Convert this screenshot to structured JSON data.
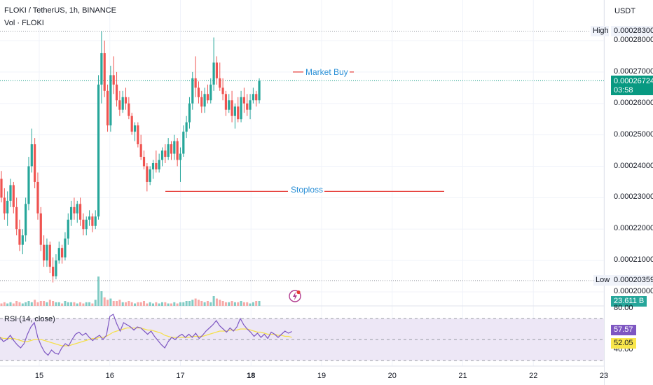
{
  "header": {
    "symbol_line": "FLOKI / TetherUS, 1h, BINANCE",
    "volume_line": "Vol · FLOKI",
    "currency": "USDT"
  },
  "price_axis": {
    "ticks": [
      "0.00028000",
      "0.00027000",
      "0.00026000",
      "0.00025000",
      "0.00024000",
      "0.00023000",
      "0.00022000",
      "0.00021000",
      "0.00020000"
    ],
    "high_label": "High",
    "high_value": "0.00028300",
    "low_label": "Low",
    "low_value": "0.00020359",
    "last_price": "0.00026724",
    "countdown": "03:58",
    "volume_value": "23.611 B"
  },
  "rsi_axis": {
    "label": "RSI (14, close)",
    "top_tick": "80.00",
    "bottom_tick": "40.00",
    "rsi_value": "57.57",
    "ma_value": "52.05"
  },
  "annotations": {
    "market_buy": "Market Buy",
    "stoploss": "Stoploss"
  },
  "time_axis": {
    "labels": [
      "15",
      "16",
      "17",
      "18",
      "19",
      "20",
      "21",
      "22",
      "23"
    ],
    "bold_label": "18"
  },
  "colors": {
    "up": "#26a69a",
    "down": "#ef5350",
    "rsi_line": "#7e57c2",
    "rsi_ma": "#f5e04a",
    "rsi_band": "#ede7f6",
    "annotation_text": "#2a8fd6",
    "annotation_line": "#e53935",
    "last_price_bg": "#089981",
    "rsi_value_bg": "#7e57c2",
    "ma_value_bg": "#f9e64b"
  },
  "chart_data": {
    "type": "candlestick",
    "title": "FLOKI / TetherUS, 1h, BINANCE",
    "ylim": [
      0.0001985,
      0.0002875
    ],
    "x_range": [
      "14.4",
      "23"
    ],
    "levels": {
      "high": 0.000283,
      "low": 0.00020359,
      "last": 0.00026724,
      "market_buy": 0.00027,
      "stoploss": 0.000232
    },
    "candles": [
      [
        0.000236,
        0.0002385,
        0.0002285,
        0.00023
      ],
      [
        0.00023,
        0.000233,
        0.000223,
        0.000225
      ],
      [
        0.000225,
        0.000232,
        0.000221,
        0.000229
      ],
      [
        0.000229,
        0.000236,
        0.000227,
        0.000234
      ],
      [
        0.000234,
        0.000235,
        0.000225,
        0.000227
      ],
      [
        0.000227,
        0.00023,
        0.000218,
        0.00022
      ],
      [
        0.00022,
        0.000223,
        0.000213,
        0.000215
      ],
      [
        0.000215,
        0.00022,
        0.000212,
        0.000218
      ],
      [
        0.000218,
        0.00023,
        0.000216,
        0.000228
      ],
      [
        0.000228,
        0.000243,
        0.000226,
        0.00024
      ],
      [
        0.00024,
        0.000252,
        0.000238,
        0.000247
      ],
      [
        0.000247,
        0.000249,
        0.000233,
        0.000235
      ],
      [
        0.000235,
        0.000238,
        0.000223,
        0.000225
      ],
      [
        0.000225,
        0.000227,
        0.000213,
        0.000215
      ],
      [
        0.000215,
        0.000218,
        0.000208,
        0.00021
      ],
      [
        0.00021,
        0.000217,
        0.000208,
        0.000215
      ],
      [
        0.000215,
        0.000216,
        0.000206,
        0.000208
      ],
      [
        0.000208,
        0.000211,
        0.000203,
        0.000205
      ],
      [
        0.000205,
        0.000212,
        0.000204,
        0.00021
      ],
      [
        0.00021,
        0.000216,
        0.000209,
        0.000214
      ],
      [
        0.000214,
        0.000215,
        0.000209,
        0.000211
      ],
      [
        0.000211,
        0.000219,
        0.00021,
        0.000217
      ],
      [
        0.000217,
        0.000225,
        0.000215,
        0.000223
      ],
      [
        0.000223,
        0.000229,
        0.000221,
        0.000227
      ],
      [
        0.000227,
        0.00023,
        0.000223,
        0.000225
      ],
      [
        0.000225,
        0.000229,
        0.000222,
        0.000228
      ],
      [
        0.000228,
        0.00023,
        0.000221,
        0.000223
      ],
      [
        0.000223,
        0.000225,
        0.000218,
        0.00022
      ],
      [
        0.00022,
        0.000224,
        0.000218,
        0.000223
      ],
      [
        0.000223,
        0.000226,
        0.000221,
        0.000224
      ],
      [
        0.000224,
        0.000225,
        0.000219,
        0.000221
      ],
      [
        0.000221,
        0.000226,
        0.00022,
        0.000224
      ],
      [
        0.000224,
        0.000269,
        0.000223,
        0.000266
      ],
      [
        0.000266,
        0.000283,
        0.00026,
        0.000276
      ],
      [
        0.000276,
        0.00028,
        0.000262,
        0.000264
      ],
      [
        0.000264,
        0.000266,
        0.000251,
        0.000253
      ],
      [
        0.000253,
        0.000272,
        0.000251,
        0.000269
      ],
      [
        0.000269,
        0.000275,
        0.000263,
        0.000266
      ],
      [
        0.000266,
        0.00027,
        0.000259,
        0.000261
      ],
      [
        0.000261,
        0.000264,
        0.000256,
        0.000258
      ],
      [
        0.000258,
        0.000264,
        0.000257,
        0.000262
      ],
      [
        0.000262,
        0.000265,
        0.000258,
        0.00026
      ],
      [
        0.00026,
        0.000262,
        0.000255,
        0.000256
      ],
      [
        0.000256,
        0.000257,
        0.00025,
        0.000251
      ],
      [
        0.000251,
        0.000254,
        0.000248,
        0.000253
      ],
      [
        0.000253,
        0.000254,
        0.000246,
        0.000247
      ],
      [
        0.000247,
        0.00025,
        0.000242,
        0.000243
      ],
      [
        0.000243,
        0.000245,
        0.000239,
        0.00024
      ],
      [
        0.00024,
        0.000241,
        0.000232,
        0.000235
      ],
      [
        0.000235,
        0.00024,
        0.000234,
        0.000239
      ],
      [
        0.000239,
        0.000242,
        0.000236,
        0.000241
      ],
      [
        0.000241,
        0.000245,
        0.000238,
        0.000239
      ],
      [
        0.000239,
        0.000244,
        0.000238,
        0.000242
      ],
      [
        0.000242,
        0.000246,
        0.00024,
        0.000245
      ],
      [
        0.000245,
        0.000247,
        0.000241,
        0.000243
      ],
      [
        0.000243,
        0.000249,
        0.000242,
        0.000247
      ],
      [
        0.000247,
        0.000248,
        0.000242,
        0.000244
      ],
      [
        0.000244,
        0.00025,
        0.000242,
        0.000248
      ],
      [
        0.000248,
        0.000249,
        0.00024,
        0.000242
      ],
      [
        0.000242,
        0.000246,
        0.000235,
        0.000244
      ],
      [
        0.000244,
        0.000253,
        0.000243,
        0.000251
      ],
      [
        0.000251,
        0.000256,
        0.000249,
        0.000254
      ],
      [
        0.000254,
        0.000262,
        0.000252,
        0.00026
      ],
      [
        0.00026,
        0.00027,
        0.000258,
        0.000268
      ],
      [
        0.000268,
        0.000275,
        0.000262,
        0.000265
      ],
      [
        0.000265,
        0.000267,
        0.00026,
        0.000262
      ],
      [
        0.000262,
        0.000264,
        0.000257,
        0.000259
      ],
      [
        0.000259,
        0.000265,
        0.000257,
        0.000263
      ],
      [
        0.000263,
        0.000266,
        0.00026,
        0.000261
      ],
      [
        0.000261,
        0.000268,
        0.00026,
        0.000266
      ],
      [
        0.000266,
        0.000281,
        0.000264,
        0.000273
      ],
      [
        0.000273,
        0.000275,
        0.000266,
        0.000268
      ],
      [
        0.000268,
        0.000273,
        0.000264,
        0.000265
      ],
      [
        0.000265,
        0.000268,
        0.000261,
        0.000263
      ],
      [
        0.000263,
        0.000264,
        0.000256,
        0.000258
      ],
      [
        0.000258,
        0.000263,
        0.000257,
        0.000261
      ],
      [
        0.000261,
        0.000264,
        0.000254,
        0.000256
      ],
      [
        0.000256,
        0.00026,
        0.000252,
        0.000259
      ],
      [
        0.000259,
        0.000262,
        0.000254,
        0.000255
      ],
      [
        0.000255,
        0.000264,
        0.000254,
        0.000262
      ],
      [
        0.000262,
        0.000265,
        0.000257,
        0.00026
      ],
      [
        0.00026,
        0.000263,
        0.000256,
        0.000258
      ],
      [
        0.000258,
        0.000263,
        0.000255,
        0.000261
      ],
      [
        0.000261,
        0.000265,
        0.00026,
        0.000263
      ],
      [
        0.000263,
        0.000264,
        0.000259,
        0.000261
      ],
      [
        0.000261,
        0.000268,
        0.00026,
        0.0002672
      ]
    ],
    "volume_max": 23.611,
    "rsi": {
      "ylim": [
        34,
        88
      ],
      "bands": [
        70,
        50,
        30
      ],
      "values": [
        52,
        48,
        50,
        54,
        49,
        45,
        42,
        46,
        55,
        62,
        66,
        52,
        44,
        38,
        35,
        40,
        37,
        36,
        42,
        46,
        44,
        50,
        55,
        57,
        54,
        56,
        52,
        49,
        52,
        54,
        50,
        54,
        72,
        74,
        65,
        58,
        66,
        64,
        62,
        59,
        62,
        61,
        58,
        55,
        58,
        53,
        49,
        45,
        42,
        48,
        52,
        50,
        53,
        55,
        52,
        55,
        52,
        56,
        51,
        54,
        58,
        61,
        64,
        68,
        63,
        60,
        57,
        61,
        58,
        62,
        70,
        64,
        60,
        57,
        53,
        56,
        52,
        55,
        51,
        57,
        55,
        52,
        55,
        58,
        56,
        57.57
      ],
      "ma_values": [
        52,
        51,
        51,
        51,
        51,
        50,
        49,
        48,
        48,
        49,
        50,
        50,
        50,
        49,
        48,
        47,
        46,
        45,
        44,
        44,
        44,
        45,
        46,
        47,
        48,
        49,
        50,
        51,
        51,
        52,
        52,
        53,
        55,
        57,
        58,
        59,
        60,
        61,
        61,
        61,
        61,
        61,
        60,
        59,
        59,
        58,
        57,
        56,
        54,
        53,
        52,
        52,
        52,
        52,
        52,
        52,
        53,
        53,
        53,
        53,
        54,
        55,
        56,
        57,
        58,
        58,
        58,
        59,
        59,
        59,
        60,
        60,
        60,
        59,
        58,
        57,
        57,
        56,
        55,
        55,
        55,
        54,
        54,
        53,
        53,
        52.05
      ]
    }
  }
}
